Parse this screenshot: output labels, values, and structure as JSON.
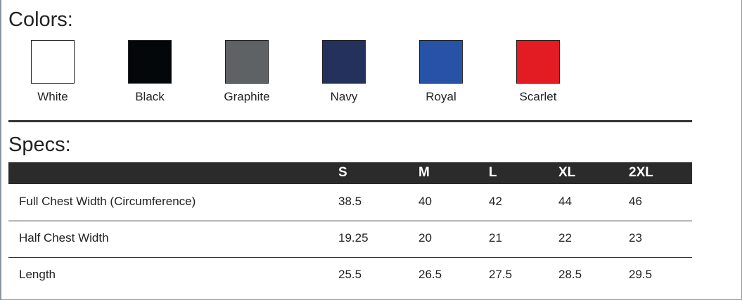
{
  "colors": {
    "title": "Colors:",
    "swatches": [
      {
        "name": "White",
        "color": "#ffffff"
      },
      {
        "name": "Black",
        "color": "#03070a"
      },
      {
        "name": "Graphite",
        "color": "#5f6264"
      },
      {
        "name": "Navy",
        "color": "#24315d"
      },
      {
        "name": "Royal",
        "color": "#2752a5"
      },
      {
        "name": "Scarlet",
        "color": "#e31b23"
      }
    ]
  },
  "specs": {
    "title": "Specs:",
    "table": {
      "header": [
        "S",
        "M",
        "L",
        "XL",
        "2XL"
      ],
      "rows": [
        {
          "label": "Full Chest Width (Circumference)",
          "values": [
            "38.5",
            "40",
            "42",
            "44",
            "46"
          ]
        },
        {
          "label": "Half Chest Width",
          "values": [
            "19.25",
            "20",
            "21",
            "22",
            "23"
          ]
        },
        {
          "label": "Length",
          "values": [
            "25.5",
            "26.5",
            "27.5",
            "28.5",
            "29.5"
          ]
        }
      ]
    }
  }
}
